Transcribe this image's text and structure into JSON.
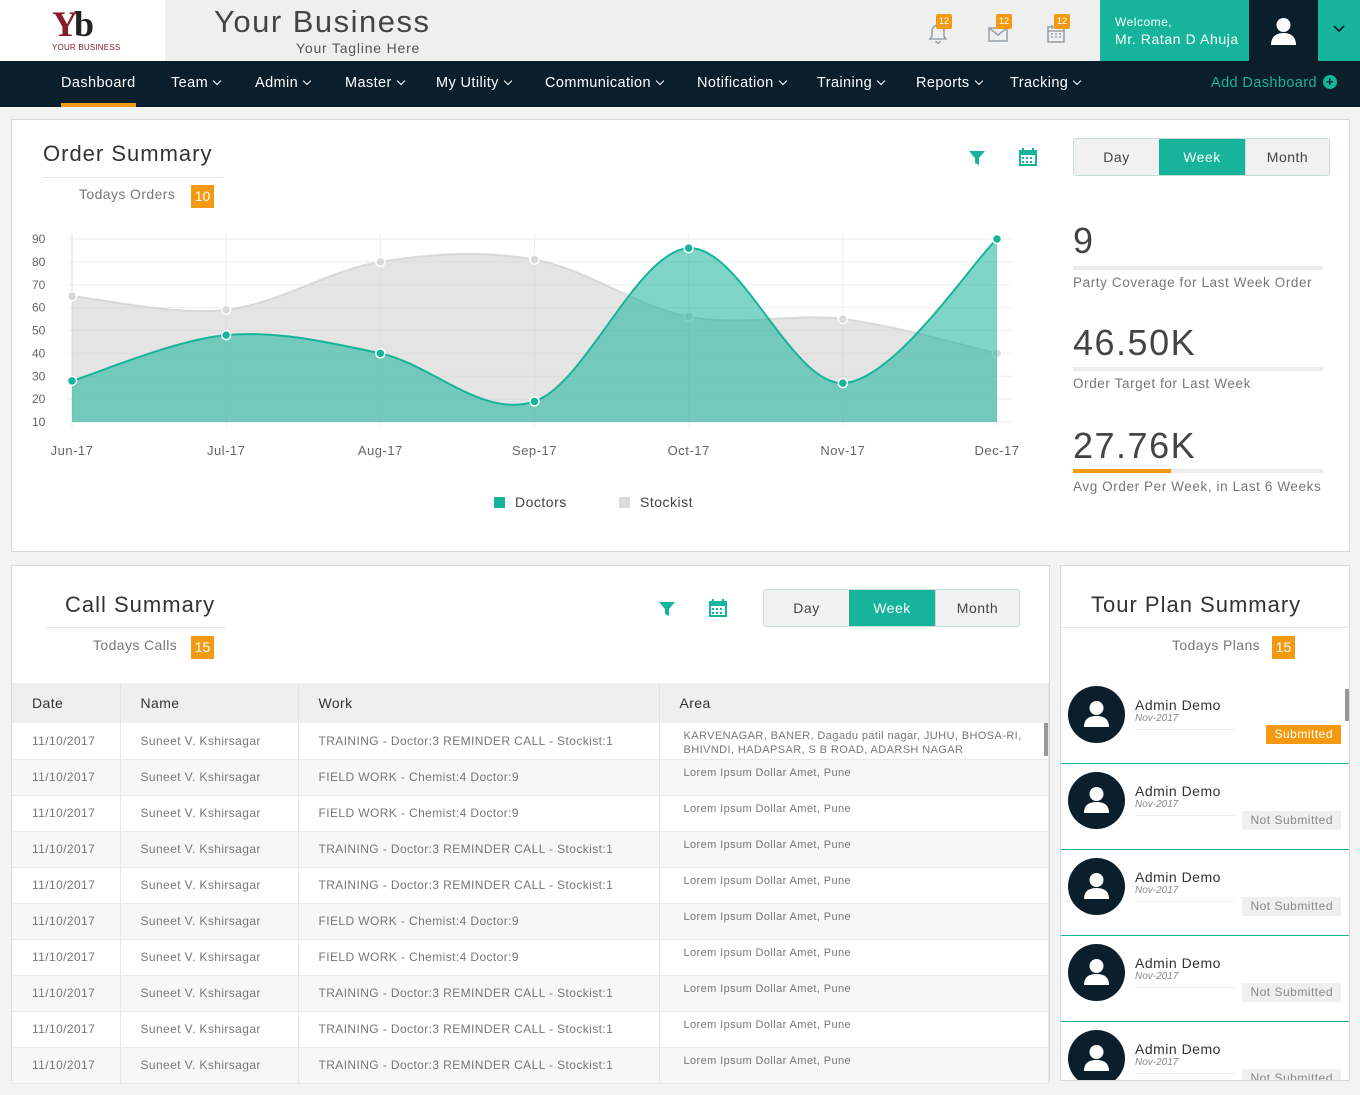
{
  "header": {
    "logo_text": "YOUR BUSINESS",
    "brand": "Your Business",
    "tagline": "Your Tagline Here",
    "notifications": [
      {
        "icon": "bell-icon",
        "count": "12"
      },
      {
        "icon": "envelope-icon",
        "count": "12"
      },
      {
        "icon": "calendar-icon",
        "count": "12"
      }
    ],
    "welcome": "Welcome,",
    "user": "Mr. Ratan D Ahuja"
  },
  "nav": {
    "items": [
      "Dashboard",
      "Team",
      "Admin",
      "Master",
      "My Utility",
      "Communication",
      "Notification",
      "Training",
      "Reports",
      "Tracking"
    ],
    "add": "Add Dashboard"
  },
  "order": {
    "title": "Order Summary",
    "sub": "Todays Orders",
    "badge": "10",
    "periods": [
      "Day",
      "Week",
      "Month"
    ],
    "active_period": "Week",
    "stats": [
      {
        "value": "9",
        "label": "Party Coverage for Last Week Order",
        "progress": 1.0
      },
      {
        "value": "46.50K",
        "label": "Order Target for Last Week",
        "progress": 1.0
      },
      {
        "value": "27.76K",
        "label": "Avg Order Per Week, in Last 6 Weeks",
        "progress": 0.39
      }
    ]
  },
  "chart_data": {
    "type": "area",
    "categories": [
      "Jun-17",
      "Jul-17",
      "Aug-17",
      "Sep-17",
      "Oct-17",
      "Nov-17",
      "Dec-17"
    ],
    "series": [
      {
        "name": "Doctors",
        "values": [
          28,
          48,
          40,
          19,
          86,
          27,
          90
        ],
        "color": "#16b49b"
      },
      {
        "name": "Stockist",
        "values": [
          65,
          59,
          80,
          81,
          56,
          55,
          40
        ],
        "color": "#d8d8d8"
      }
    ],
    "yticks": [
      90,
      80,
      70,
      60,
      50,
      40,
      30,
      20,
      10
    ],
    "ylim": [
      10,
      90
    ],
    "grid": true,
    "legend": "bottom"
  },
  "calls": {
    "title": "Call Summary",
    "sub": "Todays Calls",
    "badge": "15",
    "periods": [
      "Day",
      "Week",
      "Month"
    ],
    "columns": [
      "Date",
      "Name",
      "Work",
      "Area"
    ],
    "rows": [
      [
        "11/10/2017",
        "Suneet V. Kshirsagar",
        "TRAINING - Doctor:3 REMINDER CALL - Stockist:1",
        "KARVENAGAR, BANER, Dagadu patil nagar, JUHU, BHOSA-RI, BHIVNDI, HADAPSAR, S B ROAD, ADARSH NAGAR"
      ],
      [
        "11/10/2017",
        "Suneet V. Kshirsagar",
        "FIELD WORK - Chemist:4 Doctor:9",
        "Lorem Ipsum Dollar Amet, Pune"
      ],
      [
        "11/10/2017",
        "Suneet V. Kshirsagar",
        "FIELD WORK - Chemist:4 Doctor:9",
        "Lorem Ipsum Dollar Amet, Pune"
      ],
      [
        "11/10/2017",
        "Suneet V. Kshirsagar",
        "TRAINING - Doctor:3 REMINDER CALL - Stockist:1",
        "Lorem Ipsum Dollar Amet, Pune"
      ],
      [
        "11/10/2017",
        "Suneet V. Kshirsagar",
        "TRAINING - Doctor:3 REMINDER CALL - Stockist:1",
        "Lorem Ipsum Dollar Amet, Pune"
      ],
      [
        "11/10/2017",
        "Suneet V. Kshirsagar",
        "FIELD WORK - Chemist:4 Doctor:9",
        "Lorem Ipsum Dollar Amet, Pune"
      ],
      [
        "11/10/2017",
        "Suneet V. Kshirsagar",
        "FIELD WORK - Chemist:4 Doctor:9",
        "Lorem Ipsum Dollar Amet, Pune"
      ],
      [
        "11/10/2017",
        "Suneet V. Kshirsagar",
        "TRAINING - Doctor:3 REMINDER CALL - Stockist:1",
        "Lorem Ipsum Dollar Amet, Pune"
      ],
      [
        "11/10/2017",
        "Suneet V. Kshirsagar",
        "TRAINING - Doctor:3 REMINDER CALL - Stockist:1",
        "Lorem Ipsum Dollar Amet, Pune"
      ],
      [
        "11/10/2017",
        "Suneet V. Kshirsagar",
        "TRAINING - Doctor:3 REMINDER CALL - Stockist:1",
        "Lorem Ipsum Dollar Amet, Pune"
      ]
    ]
  },
  "tour": {
    "title": "Tour Plan Summary",
    "sub": "Todays Plans",
    "badge": "15",
    "items": [
      {
        "name": "Admin Demo",
        "date": "Nov-2017",
        "status": "Submitted"
      },
      {
        "name": "Admin Demo",
        "date": "Nov-2017",
        "status": "Not Submitted"
      },
      {
        "name": "Admin Demo",
        "date": "Nov-2017",
        "status": "Not Submitted"
      },
      {
        "name": "Admin Demo",
        "date": "Nov-2017",
        "status": "Not Submitted"
      },
      {
        "name": "Admin Demo",
        "date": "Nov-2017",
        "status": "Not Submitted"
      }
    ]
  },
  "colors": {
    "accent": "#16b49b",
    "orange": "#f39a12",
    "navy": "#0b1e2b"
  }
}
